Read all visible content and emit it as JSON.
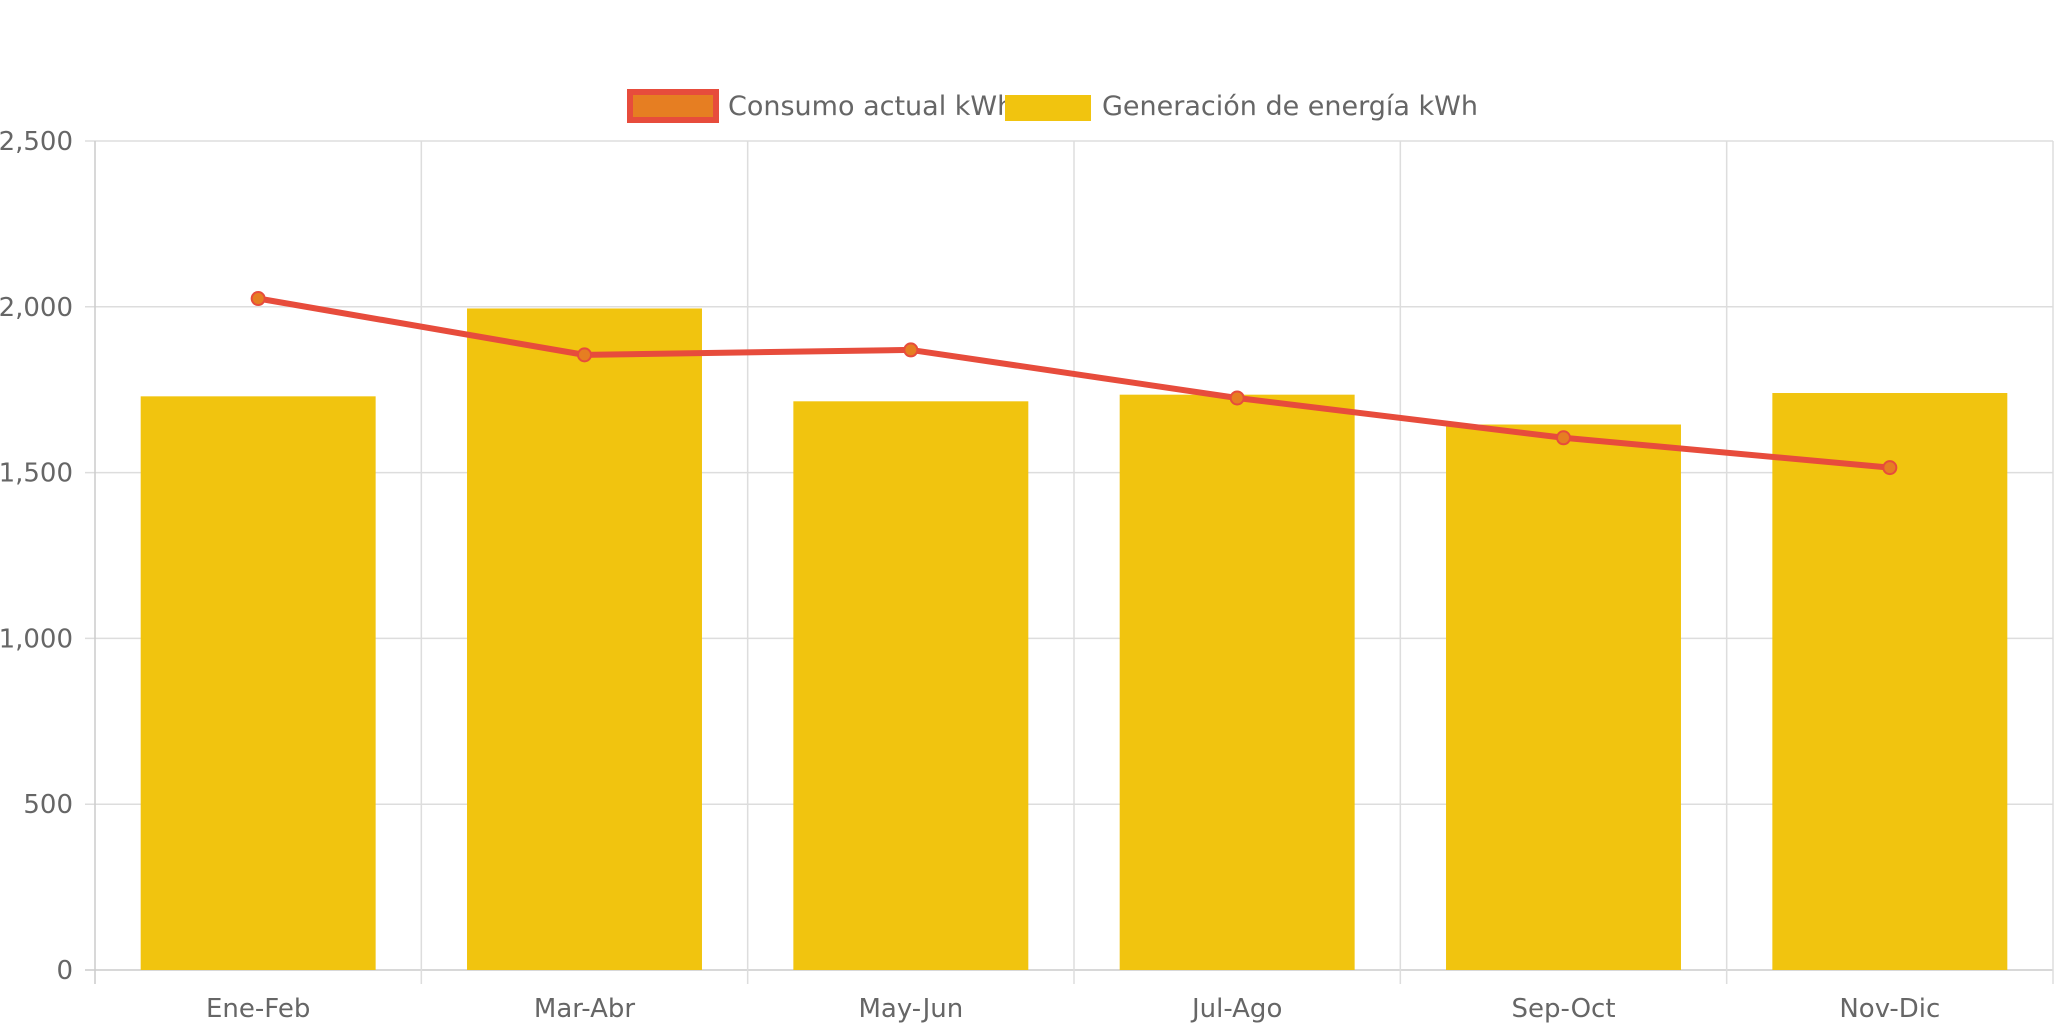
{
  "chart_data": {
    "type": "bar",
    "categories": [
      "Ene-Feb",
      "Mar-Abr",
      "May-Jun",
      "Jul-Ago",
      "Sep-Oct",
      "Nov-Dic"
    ],
    "series": [
      {
        "name": "Consumo actual kWh",
        "type": "line",
        "values": [
          2025,
          1855,
          1870,
          1725,
          1605,
          1515
        ],
        "line_color": "#e74c3c",
        "point_fill": "#e67e22"
      },
      {
        "name": "Generación de energía kWh",
        "type": "bar",
        "values": [
          1730,
          1995,
          1715,
          1735,
          1645,
          1740
        ],
        "color": "#f1c40f"
      }
    ],
    "y_ticks": [
      "0",
      "500",
      "1,000",
      "1,500",
      "2,000",
      "2,500"
    ],
    "ylim": [
      0,
      2500
    ],
    "grid": true,
    "legend_position": "top-center"
  },
  "colors": {
    "grid": "#dddddd",
    "axis": "#cccccc",
    "text": "#666666"
  }
}
